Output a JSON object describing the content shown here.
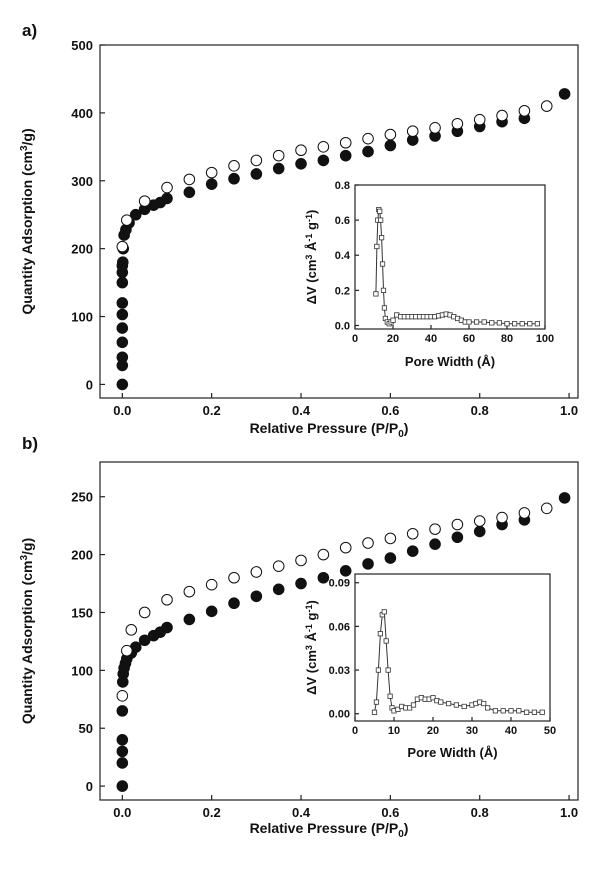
{
  "chart_data": [
    {
      "panel_label": "a)",
      "type": "scatter",
      "xlabel": "Relative Pressure (P/P0)",
      "ylabel": "Quantity Adsorption (cm3/g)",
      "xlim": [
        -0.05,
        1.02
      ],
      "ylim": [
        -20,
        500
      ],
      "xticks": [
        "0.0",
        "0.2",
        "0.4",
        "0.6",
        "0.8",
        "1.0"
      ],
      "yticks": [
        "0",
        "100",
        "200",
        "300",
        "400",
        "500"
      ],
      "xtick_values": [
        0,
        0.2,
        0.4,
        0.6,
        0.8,
        1.0
      ],
      "ytick_values": [
        0,
        100,
        200,
        300,
        400,
        500
      ],
      "series": [
        {
          "marker": "filled-circle",
          "points": [
            [
              0.0,
              0
            ],
            [
              0.0,
              28
            ],
            [
              0.0,
              40
            ],
            [
              0.0,
              62
            ],
            [
              0.0,
              83
            ],
            [
              0.0,
              103
            ],
            [
              0.0,
              120
            ],
            [
              0.0,
              150
            ],
            [
              0.0,
              165
            ],
            [
              0.0,
              175
            ],
            [
              0.001,
              180
            ],
            [
              0.002,
              200
            ],
            [
              0.004,
              220
            ],
            [
              0.008,
              228
            ],
            [
              0.015,
              238
            ],
            [
              0.03,
              250
            ],
            [
              0.05,
              258
            ],
            [
              0.07,
              264
            ],
            [
              0.085,
              268
            ],
            [
              0.1,
              274
            ],
            [
              0.15,
              283
            ],
            [
              0.2,
              295
            ],
            [
              0.25,
              303
            ],
            [
              0.3,
              310
            ],
            [
              0.35,
              318
            ],
            [
              0.4,
              325
            ],
            [
              0.45,
              330
            ],
            [
              0.5,
              337
            ],
            [
              0.55,
              343
            ],
            [
              0.6,
              352
            ],
            [
              0.65,
              360
            ],
            [
              0.7,
              366
            ],
            [
              0.75,
              373
            ],
            [
              0.8,
              380
            ],
            [
              0.85,
              387
            ],
            [
              0.9,
              392
            ],
            [
              0.99,
              428
            ]
          ]
        },
        {
          "marker": "open-circle",
          "points": [
            [
              0.0,
              203
            ],
            [
              0.01,
              242
            ],
            [
              0.05,
              270
            ],
            [
              0.1,
              290
            ],
            [
              0.15,
              302
            ],
            [
              0.2,
              312
            ],
            [
              0.25,
              322
            ],
            [
              0.3,
              330
            ],
            [
              0.35,
              337
            ],
            [
              0.4,
              345
            ],
            [
              0.45,
              350
            ],
            [
              0.5,
              356
            ],
            [
              0.55,
              362
            ],
            [
              0.6,
              368
            ],
            [
              0.65,
              373
            ],
            [
              0.7,
              378
            ],
            [
              0.75,
              384
            ],
            [
              0.8,
              390
            ],
            [
              0.85,
              396
            ],
            [
              0.9,
              403
            ],
            [
              0.95,
              410
            ]
          ]
        }
      ],
      "inset": {
        "type": "line",
        "xlabel": "Pore Width (Å)",
        "ylabel": "ΔV (cm3 Å-1 g-1)",
        "xlim": [
          0,
          100
        ],
        "ylim": [
          -0.02,
          0.8
        ],
        "xticks": [
          "0",
          "20",
          "40",
          "60",
          "80",
          "100"
        ],
        "yticks": [
          "0.0",
          "0.2",
          "0.4",
          "0.6",
          "0.8"
        ],
        "xtick_values": [
          0,
          20,
          40,
          60,
          80,
          100
        ],
        "ytick_values": [
          0,
          0.2,
          0.4,
          0.6,
          0.8
        ],
        "marker": "open-square",
        "points": [
          [
            11,
            0.18
          ],
          [
            11.5,
            0.45
          ],
          [
            12,
            0.6
          ],
          [
            12.5,
            0.66
          ],
          [
            13,
            0.65
          ],
          [
            13.5,
            0.6
          ],
          [
            14,
            0.5
          ],
          [
            14.5,
            0.35
          ],
          [
            15,
            0.2
          ],
          [
            15.5,
            0.1
          ],
          [
            16,
            0.04
          ],
          [
            17,
            0.02
          ],
          [
            18,
            0.01
          ],
          [
            19,
            0.02
          ],
          [
            20,
            0.03
          ],
          [
            22,
            0.06
          ],
          [
            24,
            0.05
          ],
          [
            26,
            0.05
          ],
          [
            28,
            0.05
          ],
          [
            30,
            0.05
          ],
          [
            32,
            0.05
          ],
          [
            34,
            0.05
          ],
          [
            36,
            0.05
          ],
          [
            38,
            0.05
          ],
          [
            40,
            0.05
          ],
          [
            42,
            0.05
          ],
          [
            44,
            0.055
          ],
          [
            46,
            0.06
          ],
          [
            48,
            0.065
          ],
          [
            50,
            0.06
          ],
          [
            52,
            0.05
          ],
          [
            54,
            0.04
          ],
          [
            56,
            0.03
          ],
          [
            58,
            0.02
          ],
          [
            60,
            0.02
          ],
          [
            64,
            0.02
          ],
          [
            68,
            0.02
          ],
          [
            72,
            0.015
          ],
          [
            76,
            0.015
          ],
          [
            80,
            0.01
          ],
          [
            84,
            0.01
          ],
          [
            88,
            0.01
          ],
          [
            92,
            0.01
          ],
          [
            96,
            0.01
          ]
        ]
      }
    },
    {
      "panel_label": "b)",
      "type": "scatter",
      "xlabel": "Relative Pressure (P/P0)",
      "ylabel": "Quantity Adsorption (cm3/g)",
      "xlim": [
        -0.05,
        1.02
      ],
      "ylim": [
        -12,
        280
      ],
      "xticks": [
        "0.0",
        "0.2",
        "0.4",
        "0.6",
        "0.8",
        "1.0"
      ],
      "yticks": [
        "0",
        "50",
        "100",
        "150",
        "200",
        "250"
      ],
      "xtick_values": [
        0,
        0.2,
        0.4,
        0.6,
        0.8,
        1.0
      ],
      "ytick_values": [
        0,
        50,
        100,
        150,
        200,
        250
      ],
      "series": [
        {
          "marker": "filled-circle",
          "points": [
            [
              0.0,
              0
            ],
            [
              0.0,
              20
            ],
            [
              0.0,
              30
            ],
            [
              0.0,
              40
            ],
            [
              0.0,
              65
            ],
            [
              0.001,
              90
            ],
            [
              0.002,
              97
            ],
            [
              0.004,
              102
            ],
            [
              0.007,
              106
            ],
            [
              0.01,
              110
            ],
            [
              0.02,
              115
            ],
            [
              0.03,
              120
            ],
            [
              0.05,
              126
            ],
            [
              0.07,
              130
            ],
            [
              0.085,
              133
            ],
            [
              0.1,
              137
            ],
            [
              0.15,
              144
            ],
            [
              0.2,
              151
            ],
            [
              0.25,
              158
            ],
            [
              0.3,
              164
            ],
            [
              0.35,
              170
            ],
            [
              0.4,
              175
            ],
            [
              0.45,
              180
            ],
            [
              0.5,
              186
            ],
            [
              0.55,
              192
            ],
            [
              0.6,
              197
            ],
            [
              0.65,
              203
            ],
            [
              0.7,
              209
            ],
            [
              0.75,
              215
            ],
            [
              0.8,
              220
            ],
            [
              0.85,
              226
            ],
            [
              0.9,
              230
            ],
            [
              0.99,
              249
            ]
          ]
        },
        {
          "marker": "open-circle",
          "points": [
            [
              0.0,
              78
            ],
            [
              0.01,
              117
            ],
            [
              0.02,
              135
            ],
            [
              0.05,
              150
            ],
            [
              0.1,
              161
            ],
            [
              0.15,
              168
            ],
            [
              0.2,
              174
            ],
            [
              0.25,
              180
            ],
            [
              0.3,
              185
            ],
            [
              0.35,
              190
            ],
            [
              0.4,
              195
            ],
            [
              0.45,
              200
            ],
            [
              0.5,
              206
            ],
            [
              0.55,
              210
            ],
            [
              0.6,
              214
            ],
            [
              0.65,
              218
            ],
            [
              0.7,
              222
            ],
            [
              0.75,
              226
            ],
            [
              0.8,
              229
            ],
            [
              0.85,
              232
            ],
            [
              0.9,
              236
            ],
            [
              0.95,
              240
            ]
          ]
        }
      ],
      "inset": {
        "type": "line",
        "xlabel": "Pore Width (Å)",
        "ylabel": "ΔV (cm3 Å-1 g-1)",
        "xlim": [
          0,
          50
        ],
        "ylim": [
          -0.005,
          0.096
        ],
        "xticks": [
          "0",
          "10",
          "20",
          "30",
          "40",
          "50"
        ],
        "yticks": [
          "0.00",
          "0.03",
          "0.06",
          "0.09"
        ],
        "xtick_values": [
          0,
          10,
          20,
          30,
          40,
          50
        ],
        "ytick_values": [
          0,
          0.03,
          0.06,
          0.09
        ],
        "marker": "open-square",
        "points": [
          [
            5,
            0.001
          ],
          [
            5.5,
            0.008
          ],
          [
            6,
            0.03
          ],
          [
            6.5,
            0.055
          ],
          [
            7,
            0.068
          ],
          [
            7.5,
            0.07
          ],
          [
            8,
            0.05
          ],
          [
            8.5,
            0.03
          ],
          [
            9,
            0.012
          ],
          [
            9.5,
            0.004
          ],
          [
            10,
            0.002
          ],
          [
            11,
            0.003
          ],
          [
            12,
            0.005
          ],
          [
            13,
            0.004
          ],
          [
            14,
            0.004
          ],
          [
            15,
            0.006
          ],
          [
            16,
            0.01
          ],
          [
            17,
            0.011
          ],
          [
            18,
            0.01
          ],
          [
            19,
            0.01
          ],
          [
            20,
            0.011
          ],
          [
            21,
            0.009
          ],
          [
            22,
            0.008
          ],
          [
            24,
            0.007
          ],
          [
            26,
            0.006
          ],
          [
            28,
            0.005
          ],
          [
            30,
            0.006
          ],
          [
            31,
            0.007
          ],
          [
            32,
            0.008
          ],
          [
            33,
            0.007
          ],
          [
            34,
            0.004
          ],
          [
            36,
            0.002
          ],
          [
            38,
            0.002
          ],
          [
            40,
            0.002
          ],
          [
            42,
            0.002
          ],
          [
            44,
            0.001
          ],
          [
            46,
            0.001
          ],
          [
            48,
            0.001
          ]
        ]
      }
    }
  ]
}
